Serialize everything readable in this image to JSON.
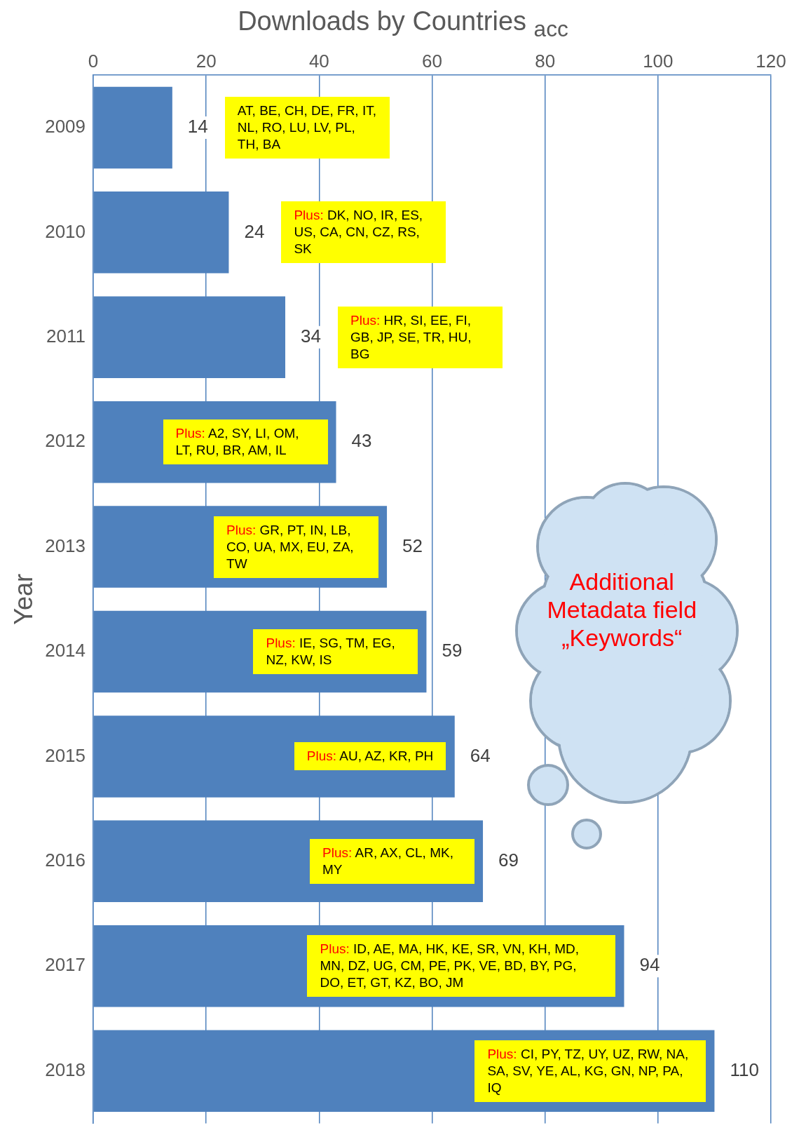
{
  "chart_data": {
    "type": "bar",
    "orientation": "horizontal",
    "title": "Downloads by Countries $_{acc}$",
    "ylabel": "Year",
    "categories": [
      "2009",
      "2010",
      "2011",
      "2012",
      "2013",
      "2014",
      "2015",
      "2016",
      "2017",
      "2018"
    ],
    "values": [
      14,
      24,
      34,
      43,
      52,
      59,
      64,
      69,
      94,
      110
    ],
    "color": "#4f81bd",
    "xlim": [
      0,
      120
    ],
    "xticks": [
      0,
      20,
      40,
      60,
      80,
      100,
      120
    ],
    "grid": "x",
    "data_labels": true,
    "legend": false,
    "annotations": [
      "AT, BE, CH, DE, FR, IT, NL, RO, LU, LV, PL, TH, BA",
      "Plus: DK, NO, IR, ES, US, CA, CN, CZ, RS, SK",
      "Plus: HR, SI, EE, FI, GB, JP, SE, TR, HU, BG",
      "Plus: A2, SY, LI, OM, LT, RU, BR, AM, IL",
      "Plus: GR, PT, IN, LB, CO, UA, MX, EU, ZA, TW",
      "Plus: IE, SG, TM, EG, NZ, KW, IS",
      "Plus: AU, AZ, KR, PH",
      "Plus: AR, AX, CL, MK, MY",
      "Plus: ID, AE, MA, HK, KE, SR, VN, KH, MD, MN, DZ, UG, CM, PE, PK, VE, BD, BY, PG, DO, ET, GT, KZ, BO, JM",
      "Plus: CI, PY, TZ, UY, UZ, RW, NA, SA, SV, YE, AL, KG, GN, NP, PA, IQ",
      "Additional Metadata field „Keywords“"
    ]
  }
}
